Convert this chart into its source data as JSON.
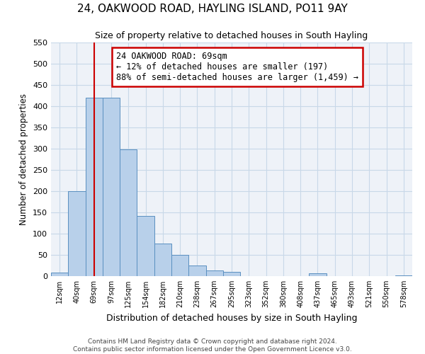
{
  "title": "24, OAKWOOD ROAD, HAYLING ISLAND, PO11 9AY",
  "subtitle": "Size of property relative to detached houses in South Hayling",
  "xlabel": "Distribution of detached houses by size in South Hayling",
  "ylabel": "Number of detached properties",
  "bar_color": "#b8d0ea",
  "bar_edge_color": "#5a8fc0",
  "categories": [
    "12sqm",
    "40sqm",
    "69sqm",
    "97sqm",
    "125sqm",
    "154sqm",
    "182sqm",
    "210sqm",
    "238sqm",
    "267sqm",
    "295sqm",
    "323sqm",
    "352sqm",
    "380sqm",
    "408sqm",
    "437sqm",
    "465sqm",
    "493sqm",
    "521sqm",
    "550sqm",
    "578sqm"
  ],
  "values": [
    8,
    200,
    420,
    420,
    298,
    142,
    77,
    50,
    25,
    13,
    10,
    0,
    0,
    0,
    0,
    6,
    0,
    0,
    0,
    0,
    2
  ],
  "ylim": [
    0,
    550
  ],
  "yticks": [
    0,
    50,
    100,
    150,
    200,
    250,
    300,
    350,
    400,
    450,
    500,
    550
  ],
  "property_line_x": 2,
  "property_label": "24 OAKWOOD ROAD: 69sqm",
  "annotation_line1": "← 12% of detached houses are smaller (197)",
  "annotation_line2": "88% of semi-detached houses are larger (1,459) →",
  "annotation_box_facecolor": "#ffffff",
  "annotation_box_edgecolor": "#cc0000",
  "vline_color": "#cc0000",
  "footer_line1": "Contains HM Land Registry data © Crown copyright and database right 2024.",
  "footer_line2": "Contains public sector information licensed under the Open Government Licence v3.0.",
  "grid_color": "#c8d8e8",
  "background_color": "#ffffff",
  "plot_bg_color": "#eef2f8"
}
